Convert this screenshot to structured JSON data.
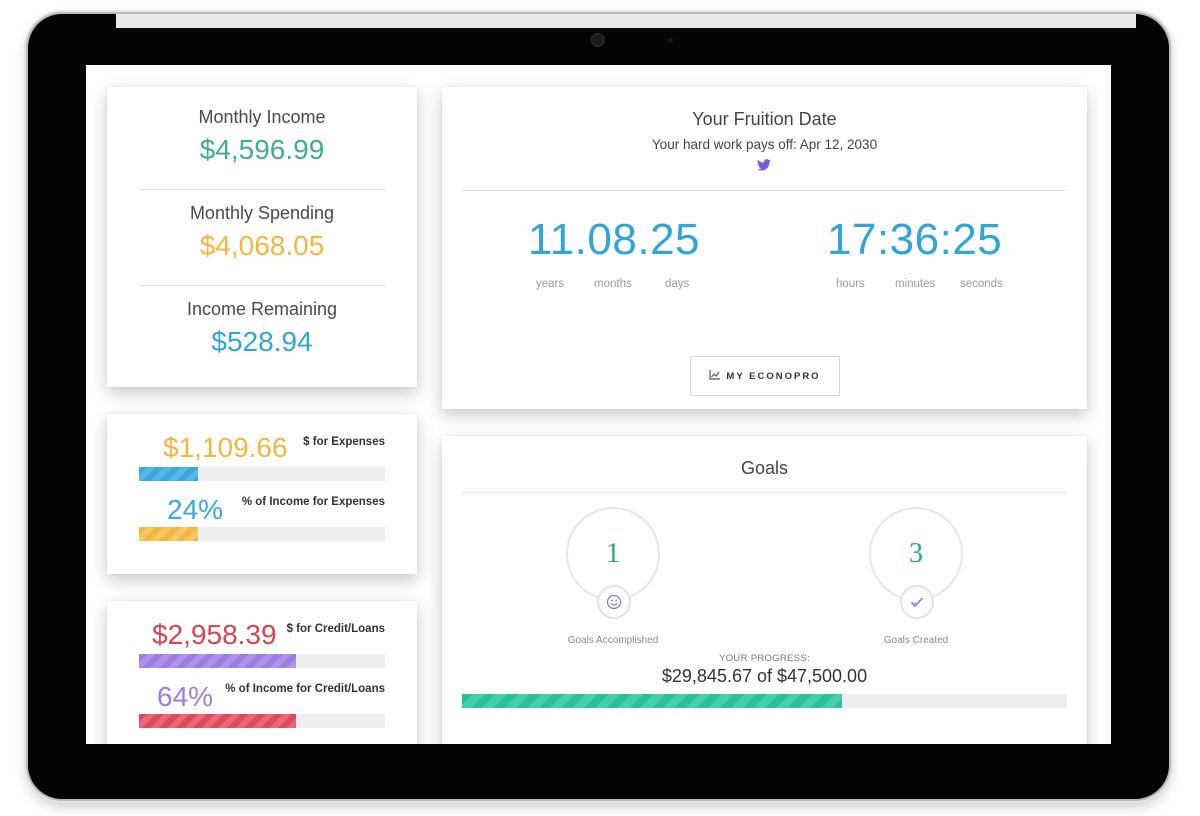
{
  "summary": {
    "income_label": "Monthly Income",
    "income_value": "$4,596.99",
    "spending_label": "Monthly Spending",
    "spending_value": "$4,068.05",
    "remaining_label": "Income Remaining",
    "remaining_value": "$528.94"
  },
  "expenses": {
    "amount": "$1,109.66",
    "amount_label": "$ for Expenses",
    "amount_fill": 0.24,
    "percent": "24%",
    "percent_label": "% of Income for Expenses",
    "percent_fill": 0.24
  },
  "credit": {
    "amount": "$2,958.39",
    "amount_label": "$ for Credit/Loans",
    "amount_fill": 0.64,
    "percent": "64%",
    "percent_label": "% of Income for Credit/Loans",
    "percent_fill": 0.64
  },
  "fruition": {
    "title": "Your Fruition Date",
    "subtitle": "Your hard work pays off: Apr 12, 2030",
    "date_timer": "11.08.25",
    "time_timer": "17:36:25",
    "labels": [
      "years",
      "months",
      "days",
      "hours",
      "minutes",
      "seconds"
    ],
    "button_label": "MY ECONOPRO",
    "button_icon": "chart-icon",
    "share_icon": "twitter-icon"
  },
  "goals": {
    "title": "Goals",
    "accomplished_count": "1",
    "accomplished_label": "Goals Accomplished",
    "accomplished_icon": "smiley-icon",
    "created_count": "3",
    "created_label": "Goals Created",
    "created_icon": "check-icon",
    "progress_label": "YOUR PROGRESS:",
    "progress_value": "$29,845.67 of $47,500.00",
    "progress_fill": 0.628
  },
  "colors": {
    "income": "#3fae8c",
    "spending": "#f3b740",
    "remaining": "#2fa6d6",
    "expenses_amount": "#f3b740",
    "expenses_percent": "#3aa8dc",
    "credit_amount": "#d9424f",
    "credit_percent": "#9b7ee0",
    "timer": "#2fa6d6",
    "progress_bar": "#28c19a"
  }
}
